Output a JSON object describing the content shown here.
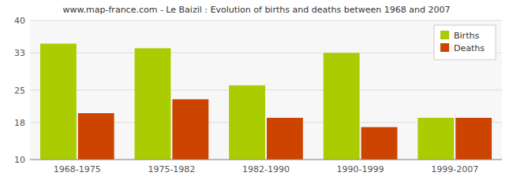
{
  "chart_data": {
    "type": "bar",
    "title": "www.map-france.com - Le Baizil : Evolution of births and deaths between 1968 and 2007",
    "categories": [
      "1968-1975",
      "1975-1982",
      "1982-1990",
      "1990-1999",
      "1999-2007"
    ],
    "series": [
      {
        "name": "Births",
        "color": "#aacc00",
        "values": [
          35,
          34,
          26,
          33,
          19
        ]
      },
      {
        "name": "Deaths",
        "color": "#cc4400",
        "values": [
          20,
          23,
          19,
          17,
          19
        ]
      }
    ],
    "ylim": [
      10,
      40
    ],
    "yticks": [
      10,
      18,
      25,
      33,
      40
    ],
    "grid": true,
    "legend": "upper right"
  }
}
